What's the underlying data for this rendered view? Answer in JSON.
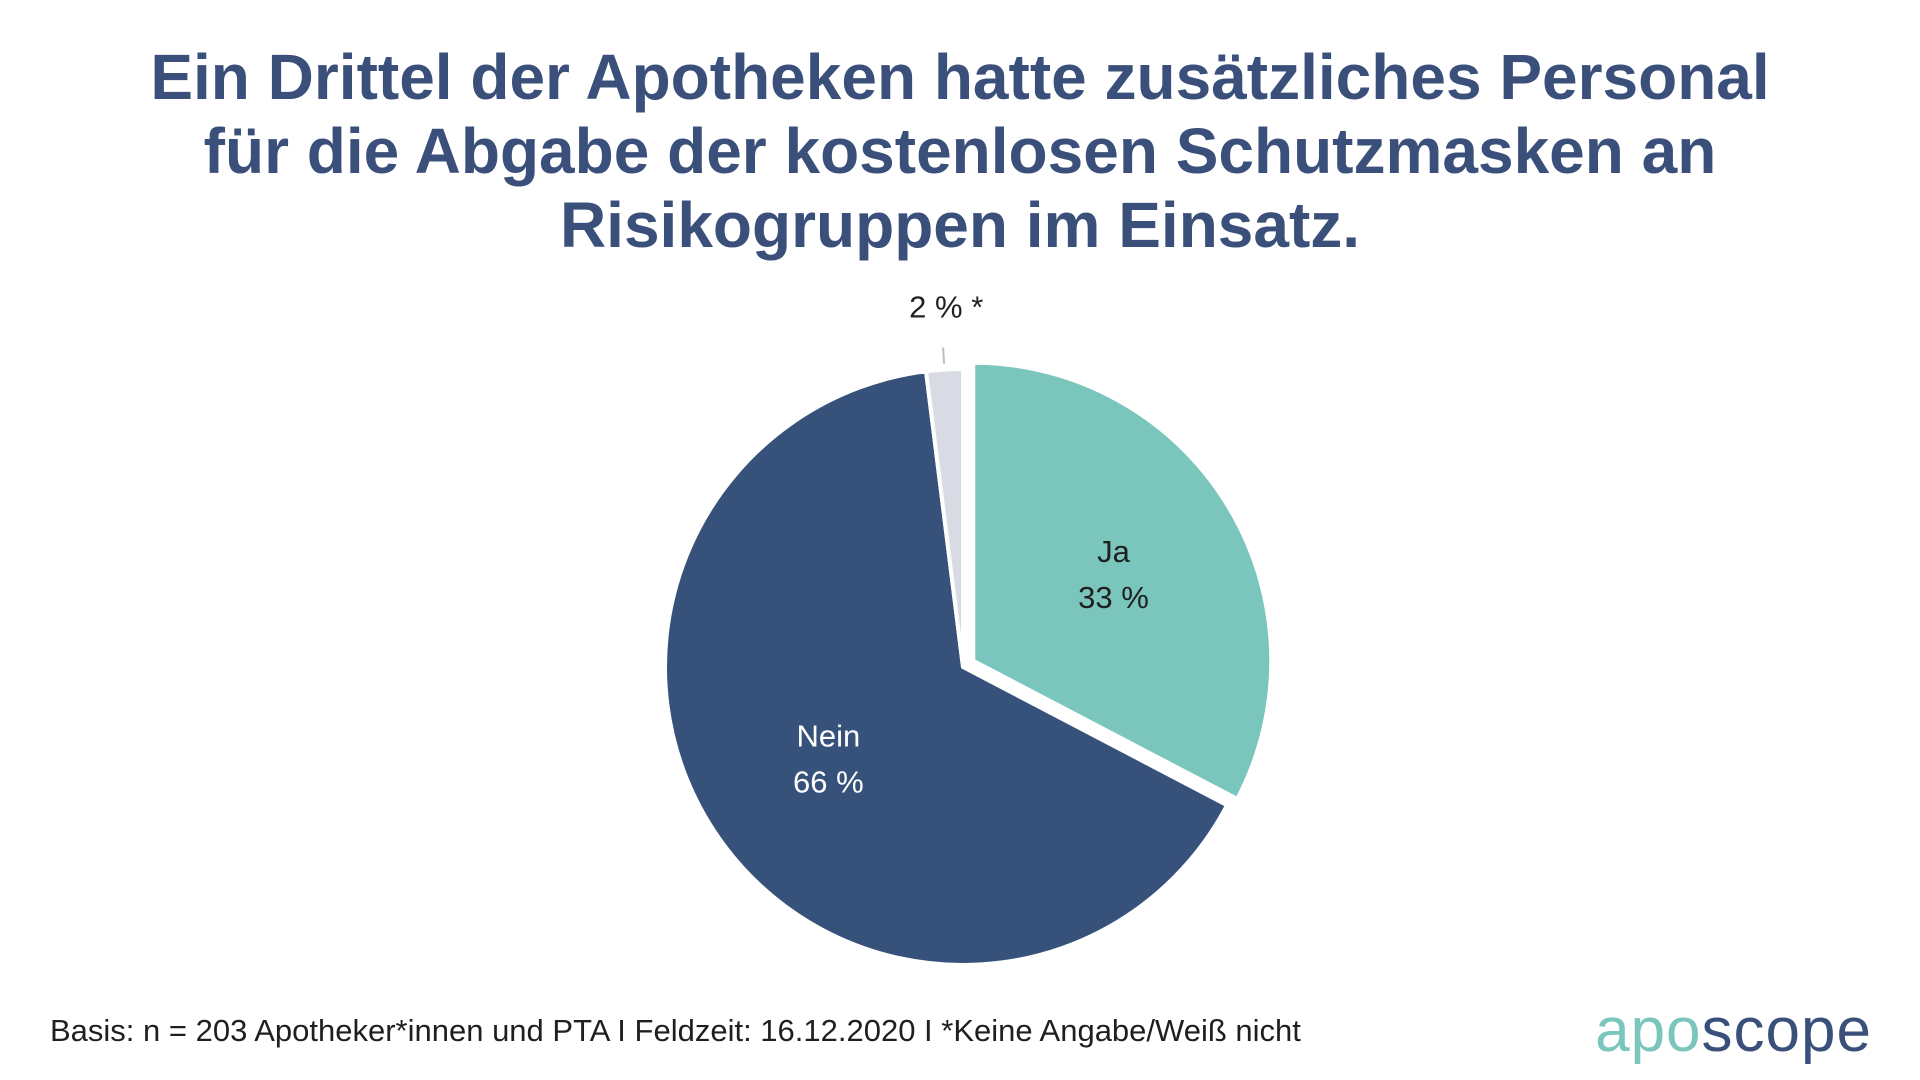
{
  "title_lines": [
    "Ein Drittel der Apotheken hatte zusätzliches Personal",
    "für die Abgabe der kostenlosen Schutzmasken an",
    "Risikogruppen im Einsatz."
  ],
  "chart_data": {
    "type": "pie",
    "title": "Ein Drittel der Apotheken hatte zusätzliches Personal für die Abgabe der kostenlosen Schutzmasken an Risikogruppen im Einsatz.",
    "unit": "%",
    "start_angle_deg": 0,
    "direction": "clockwise",
    "slices": [
      {
        "label": "Ja",
        "value": 33,
        "value_text": "33 %",
        "color": "#7ac6bd",
        "text_color": "#1f1f1f",
        "exploded": true,
        "label_position": "inside"
      },
      {
        "label": "Nein",
        "value": 66,
        "value_text": "66 %",
        "color": "#37527a",
        "text_color": "#ffffff",
        "exploded": false,
        "label_position": "inside"
      },
      {
        "label": "",
        "value": 2,
        "value_text": "2 % *",
        "color": "#d8dbe4",
        "text_color": "#222222",
        "exploded": false,
        "label_position": "outside"
      }
    ]
  },
  "footnote": "Basis: n = 203 Apotheker*innen und PTA I Feldzeit: 16.12.2020 I *Keine Angabe/Weiß nicht",
  "logo": {
    "part1": "apo",
    "part2": "scope"
  }
}
